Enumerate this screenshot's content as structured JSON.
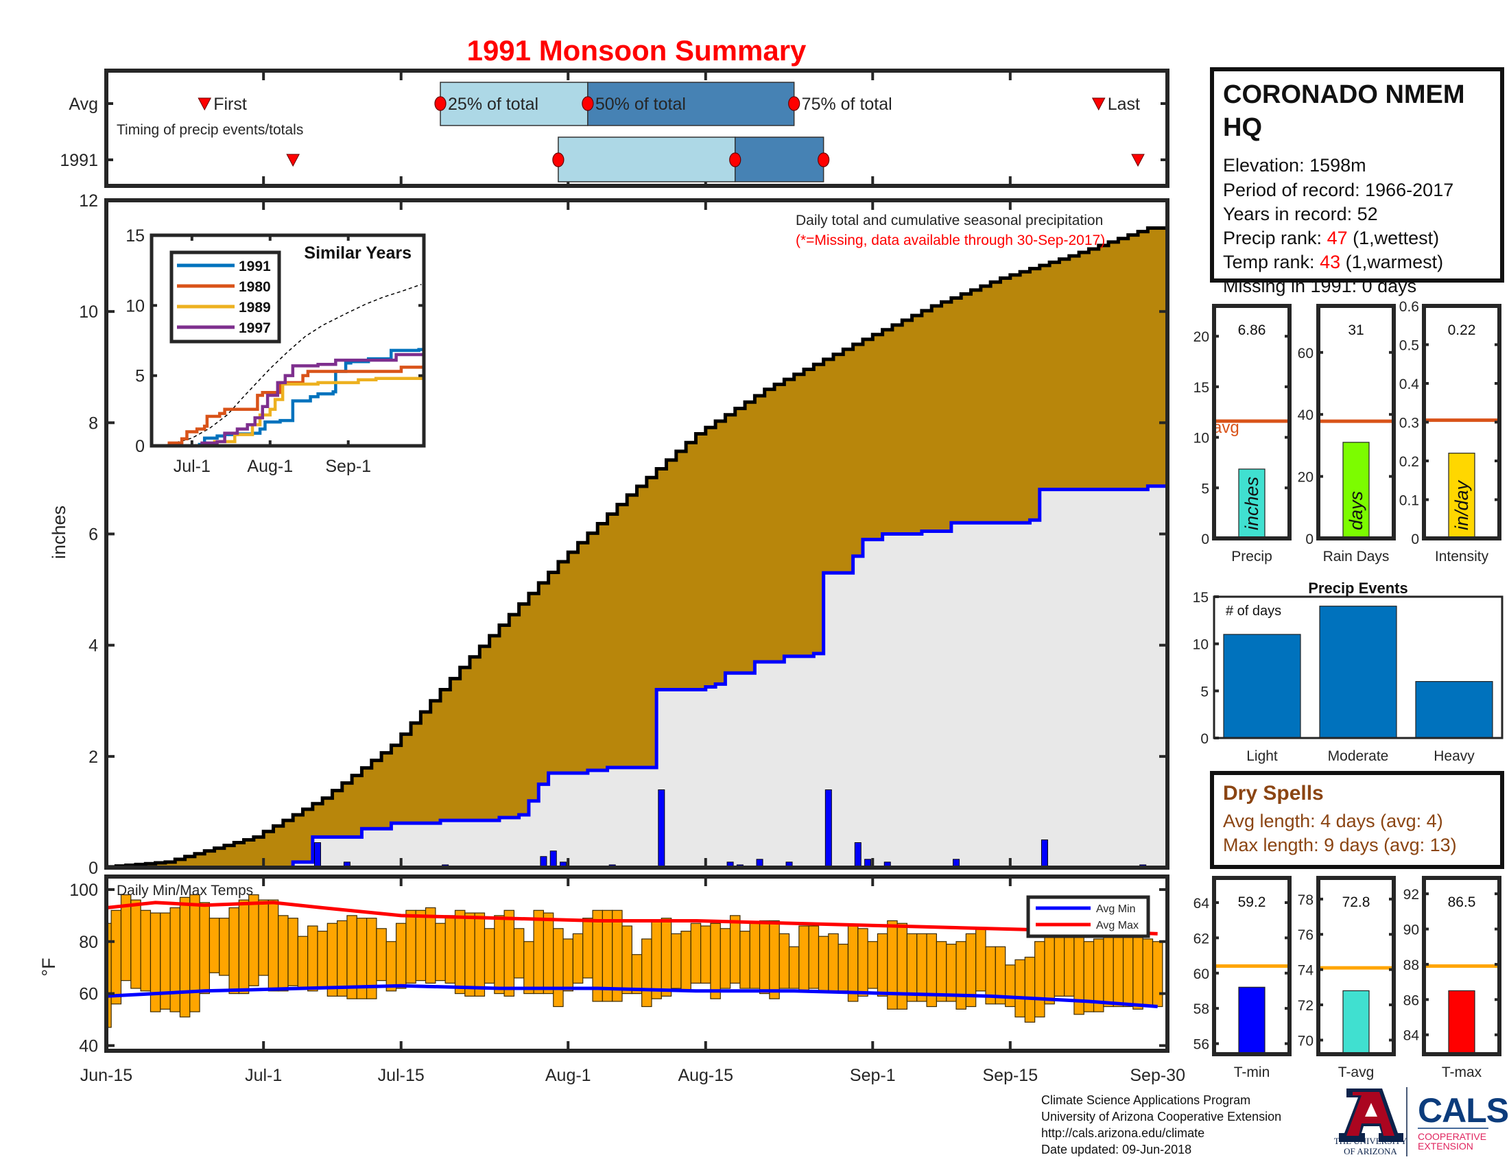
{
  "title": "1991 Monsoon Summary",
  "colors": {
    "title": "#ff0000",
    "cum_avg_fill": "#b8860b",
    "cum_year_fill": "#e8e8e8",
    "year_line": "#0000ff",
    "temp_bar": "#ffa500",
    "avg_max": "#ff0000",
    "avg_min": "#0000ff",
    "avg_line_orange": "#d95319",
    "avg_line_gold": "#ffa500",
    "dry_spells": "#8b4513"
  },
  "station": {
    "name_line1": "CORONADO NMEM",
    "name_line2": "HQ",
    "elevation": "Elevation: 1598m",
    "period": "Period of record: 1966-2017",
    "years": "Years in record: 52",
    "precip_rank_label": "Precip rank: ",
    "precip_rank_value": "47",
    "precip_rank_note": " (1,wettest)",
    "temp_rank_label": "Temp rank: ",
    "temp_rank_value": "43",
    "temp_rank_note": " (1,warmest)",
    "missing": "Missing in 1991: 0 days"
  },
  "dry_spells": {
    "title": "Dry Spells",
    "avg_length": "Avg length: 4 days (avg: 4)",
    "max_length": "Max length: 9 days (avg: 13)"
  },
  "footer": {
    "line1": "Climate Science Applications Program",
    "line2": "University of Arizona Cooperative Extension",
    "line3": "http://cals.arizona.edu/climate",
    "line4": " Date updated: 09-Jun-2018"
  },
  "logo": {
    "ua_line1": "THE UNIVERSITY",
    "ua_line2": "OF ARIZONA",
    "cals": "CALS",
    "cals_sub1": "COOPERATIVE",
    "cals_sub2": "EXTENSION"
  },
  "x_axis": {
    "ticks": [
      "Jun-15",
      "Jul-1",
      "Jul-15",
      "Aug-1",
      "Aug-15",
      "Sep-1",
      "Sep-15",
      "Sep-30"
    ]
  },
  "chart_data": [
    {
      "id": "timing",
      "type": "timeline",
      "annotation": "Timing of precip events/totals",
      "rows": [
        {
          "label": "Avg",
          "first": "Jun-25",
          "p25": "Jul-19",
          "p50": "Aug-3",
          "p75": "Aug-24",
          "last": "Sep-24",
          "texts": {
            "first": "First",
            "p25": "25% of total",
            "p50": "50% of total",
            "p75": "75% of total",
            "last": "Last"
          }
        },
        {
          "label": "1991",
          "first": "Jul-4",
          "p25": "Jul-31",
          "p50": "Aug-18",
          "p75": "Aug-27",
          "last": "Sep-28"
        }
      ]
    },
    {
      "id": "precip",
      "type": "area",
      "ylabel": "inches",
      "ylim": [
        0,
        12
      ],
      "yticks": [
        "0",
        "2",
        "4",
        "6",
        "8",
        "10",
        "12"
      ],
      "annotation": "Daily total and cumulative seasonal precipitation",
      "note": "(*=Missing, data available through 30-Sep-2017)",
      "cumulative_avg": [
        [
          "Jun-15",
          0
        ],
        [
          "Jun-22",
          0.1
        ],
        [
          "Jul-1",
          0.55
        ],
        [
          "Jul-8",
          1.25
        ],
        [
          "Jul-15",
          2.2
        ],
        [
          "Jul-22",
          3.6
        ],
        [
          "Aug-1",
          5.5
        ],
        [
          "Aug-8",
          6.7
        ],
        [
          "Aug-15",
          7.8
        ],
        [
          "Aug-22",
          8.6
        ],
        [
          "Sep-1",
          9.5
        ],
        [
          "Sep-8",
          10.1
        ],
        [
          "Sep-15",
          10.6
        ],
        [
          "Sep-22",
          11.0
        ],
        [
          "Sep-30",
          11.5
        ]
      ],
      "cumulative_1991": [
        [
          "Jun-15",
          0
        ],
        [
          "Jul-4",
          0.1
        ],
        [
          "Jul-6",
          0.55
        ],
        [
          "Jul-11",
          0.7
        ],
        [
          "Jul-14",
          0.8
        ],
        [
          "Jul-19",
          0.85
        ],
        [
          "Jul-25",
          0.9
        ],
        [
          "Jul-27",
          0.95
        ],
        [
          "Jul-28",
          1.2
        ],
        [
          "Jul-29",
          1.5
        ],
        [
          "Jul-30",
          1.7
        ],
        [
          "Aug-3",
          1.75
        ],
        [
          "Aug-5",
          1.8
        ],
        [
          "Aug-10",
          3.2
        ],
        [
          "Aug-15",
          3.25
        ],
        [
          "Aug-16",
          3.3
        ],
        [
          "Aug-17",
          3.5
        ],
        [
          "Aug-20",
          3.7
        ],
        [
          "Aug-23",
          3.8
        ],
        [
          "Aug-26",
          3.85
        ],
        [
          "Aug-27",
          5.3
        ],
        [
          "Aug-30",
          5.6
        ],
        [
          "Aug-31",
          5.9
        ],
        [
          "Sep-2",
          6.0
        ],
        [
          "Sep-6",
          6.05
        ],
        [
          "Sep-9",
          6.2
        ],
        [
          "Sep-17",
          6.25
        ],
        [
          "Sep-18",
          6.8
        ],
        [
          "Sep-29",
          6.86
        ]
      ],
      "daily_1991": [
        [
          "Jul-6",
          0.45
        ],
        [
          "Jul-9",
          0.1
        ],
        [
          "Jul-19",
          0.05
        ],
        [
          "Jul-29",
          0.2
        ],
        [
          "Jul-30",
          0.3
        ],
        [
          "Jul-31",
          0.1
        ],
        [
          "Aug-5",
          0.05
        ],
        [
          "Aug-10",
          1.4
        ],
        [
          "Aug-17",
          0.1
        ],
        [
          "Aug-18",
          0.05
        ],
        [
          "Aug-20",
          0.15
        ],
        [
          "Aug-23",
          0.1
        ],
        [
          "Aug-27",
          1.4
        ],
        [
          "Aug-30",
          0.45
        ],
        [
          "Aug-31",
          0.15
        ],
        [
          "Sep-2",
          0.1
        ],
        [
          "Sep-9",
          0.15
        ],
        [
          "Sep-18",
          0.5
        ],
        [
          "Sep-28",
          0.05
        ]
      ]
    },
    {
      "id": "similar_years",
      "type": "line",
      "title": "Similar Years",
      "ylim": [
        0,
        15
      ],
      "yticks": [
        "0",
        "5",
        "10",
        "15"
      ],
      "xticks": [
        "Jul-1",
        "Aug-1",
        "Sep-1"
      ],
      "legend": "top-left",
      "series": [
        {
          "name": "1991",
          "color": "#0072bd",
          "points": [
            [
              "Jun-15",
              0
            ],
            [
              "Jul-4",
              0.1
            ],
            [
              "Jul-6",
              0.55
            ],
            [
              "Jul-11",
              0.7
            ],
            [
              "Jul-14",
              0.8
            ],
            [
              "Jul-19",
              0.85
            ],
            [
              "Jul-25",
              0.9
            ],
            [
              "Jul-28",
              1.2
            ],
            [
              "Jul-30",
              1.7
            ],
            [
              "Aug-5",
              1.8
            ],
            [
              "Aug-10",
              3.2
            ],
            [
              "Aug-17",
              3.5
            ],
            [
              "Aug-20",
              3.7
            ],
            [
              "Aug-26",
              3.85
            ],
            [
              "Aug-27",
              5.3
            ],
            [
              "Aug-31",
              5.9
            ],
            [
              "Sep-2",
              6.0
            ],
            [
              "Sep-9",
              6.2
            ],
            [
              "Sep-18",
              6.8
            ],
            [
              "Sep-29",
              6.86
            ]
          ]
        },
        {
          "name": "1980",
          "color": "#d95319",
          "points": [
            [
              "Jun-15",
              0
            ],
            [
              "Jun-22",
              0.2
            ],
            [
              "Jun-27",
              0.5
            ],
            [
              "Jun-29",
              1.0
            ],
            [
              "Jul-3",
              1.2
            ],
            [
              "Jul-6",
              1.4
            ],
            [
              "Jul-7",
              2.1
            ],
            [
              "Jul-12",
              2.3
            ],
            [
              "Jul-14",
              2.6
            ],
            [
              "Jul-27",
              3.6
            ],
            [
              "Jul-29",
              3.8
            ],
            [
              "Aug-5",
              4.5
            ],
            [
              "Aug-14",
              5.0
            ],
            [
              "Aug-16",
              5.3
            ],
            [
              "Sep-22",
              5.6
            ]
          ]
        },
        {
          "name": "1989",
          "color": "#edb120",
          "points": [
            [
              "Jun-15",
              0
            ],
            [
              "Jul-8",
              0.0
            ],
            [
              "Jul-10",
              0.3
            ],
            [
              "Jul-18",
              0.8
            ],
            [
              "Jul-25",
              1.5
            ],
            [
              "Jul-28",
              2.2
            ],
            [
              "Aug-1",
              2.6
            ],
            [
              "Aug-3",
              3.3
            ],
            [
              "Aug-6",
              4.4
            ],
            [
              "Aug-20",
              4.5
            ],
            [
              "Sep-5",
              4.7
            ],
            [
              "Sep-12",
              4.8
            ]
          ]
        },
        {
          "name": "1997",
          "color": "#7e2f8e",
          "points": [
            [
              "Jun-15",
              0
            ],
            [
              "Jul-4",
              0.0
            ],
            [
              "Jul-5",
              0.2
            ],
            [
              "Jul-11",
              0.3
            ],
            [
              "Jul-14",
              0.9
            ],
            [
              "Jul-19",
              1.2
            ],
            [
              "Jul-23",
              1.5
            ],
            [
              "Jul-26",
              2.0
            ],
            [
              "Jul-29",
              2.8
            ],
            [
              "Jul-31",
              3.6
            ],
            [
              "Aug-4",
              4.5
            ],
            [
              "Aug-7",
              5.0
            ],
            [
              "Aug-10",
              5.7
            ],
            [
              "Aug-20",
              5.8
            ],
            [
              "Aug-27",
              6.1
            ],
            [
              "Sep-20",
              6.5
            ]
          ]
        }
      ]
    },
    {
      "id": "temps",
      "type": "bar",
      "annotation": "Daily Min/Max Temps",
      "ylabel": "°F",
      "ylim": [
        38,
        105
      ],
      "yticks": [
        "40",
        "60",
        "80",
        "100"
      ],
      "dates_from": "Jun-15",
      "dates_to": "Sep-30",
      "daily_max": [
        87,
        92,
        98,
        96,
        92,
        91,
        91,
        93,
        97,
        98,
        95,
        89,
        89,
        93,
        96,
        98,
        96,
        96,
        90,
        89,
        82,
        86,
        84,
        87,
        88,
        90,
        89,
        89,
        85,
        80,
        87,
        92,
        92,
        93,
        87,
        90,
        92,
        91,
        91,
        85,
        90,
        92,
        85,
        80,
        92,
        91,
        85,
        81,
        83,
        89,
        92,
        92,
        92,
        86,
        75,
        81,
        88,
        89,
        83,
        84,
        87,
        86,
        87,
        85,
        90,
        84,
        87,
        88,
        88,
        83,
        78,
        86,
        86,
        82,
        83,
        79,
        86,
        85,
        80,
        83,
        88,
        87,
        83,
        83,
        83,
        80,
        79,
        80,
        83,
        85,
        78,
        78,
        71,
        73,
        74,
        80,
        83,
        83,
        83,
        82,
        80,
        81,
        82,
        82,
        82,
        82,
        81,
        80
      ],
      "daily_min": [
        47,
        56,
        65,
        62,
        61,
        53,
        54,
        53,
        51,
        53,
        60,
        68,
        67,
        60,
        60,
        63,
        67,
        61,
        61,
        63,
        62,
        61,
        62,
        59,
        59,
        58,
        58,
        58,
        65,
        61,
        62,
        64,
        65,
        64,
        65,
        64,
        60,
        59,
        59,
        64,
        60,
        59,
        66,
        60,
        60,
        60,
        55,
        61,
        64,
        66,
        57,
        57,
        57,
        60,
        60,
        55,
        58,
        59,
        62,
        61,
        64,
        64,
        58,
        62,
        64,
        62,
        62,
        60,
        58,
        62,
        62,
        61,
        62,
        61,
        61,
        61,
        57,
        59,
        62,
        59,
        54,
        54,
        57,
        57,
        55,
        57,
        57,
        54,
        55,
        61,
        56,
        56,
        55,
        51,
        49,
        51,
        56,
        59,
        59,
        52,
        53,
        53,
        55,
        55,
        55,
        54,
        55,
        55
      ],
      "series": [
        {
          "name": "Avg Min",
          "color": "#0000ff",
          "points": [
            [
              "Jun-15",
              59
            ],
            [
              "Jun-25",
              61
            ],
            [
              "Jul-5",
              62
            ],
            [
              "Jul-15",
              63
            ],
            [
              "Jul-25",
              62
            ],
            [
              "Aug-4",
              62
            ],
            [
              "Aug-14",
              61
            ],
            [
              "Aug-24",
              61
            ],
            [
              "Sep-3",
              60
            ],
            [
              "Sep-13",
              59
            ],
            [
              "Sep-23",
              57
            ],
            [
              "Sep-30",
              55
            ]
          ]
        },
        {
          "name": "Avg Max",
          "color": "#ff0000",
          "points": [
            [
              "Jun-15",
              93
            ],
            [
              "Jun-20",
              95
            ],
            [
              "Jun-25",
              94
            ],
            [
              "Jul-2",
              95
            ],
            [
              "Jul-7",
              93
            ],
            [
              "Jul-15",
              90
            ],
            [
              "Jul-25",
              89
            ],
            [
              "Aug-4",
              88
            ],
            [
              "Aug-14",
              88
            ],
            [
              "Aug-24",
              87
            ],
            [
              "Sep-3",
              86
            ],
            [
              "Sep-13",
              85
            ],
            [
              "Sep-23",
              84
            ],
            [
              "Sep-30",
              83
            ]
          ]
        }
      ],
      "legend": "top-right"
    },
    {
      "id": "season_totals",
      "type": "bar",
      "panels": [
        {
          "xlabel": "Precip",
          "value": 6.86,
          "value_label": "6.86",
          "avg": 11.6,
          "avg_label": "avg",
          "unit": "inches",
          "color": "#40e0d0",
          "ylim": [
            0,
            23
          ],
          "yticks": [
            "0",
            "5",
            "10",
            "15",
            "20"
          ]
        },
        {
          "xlabel": "Rain Days",
          "value": 31,
          "value_label": "31",
          "avg": 37.8,
          "unit": "days",
          "color": "#7cfc00",
          "ylim": [
            0,
            75
          ],
          "yticks": [
            "0",
            "20",
            "40",
            "60"
          ]
        },
        {
          "xlabel": "Intensity",
          "value": 0.22,
          "value_label": "0.22",
          "avg": 0.305,
          "unit": "in/day",
          "color": "#ffd700",
          "ylim": [
            0,
            0.6
          ],
          "yticks": [
            "0",
            "0.1",
            "0.2",
            "0.3",
            "0.4",
            "0.5",
            "0.6"
          ]
        }
      ]
    },
    {
      "id": "precip_events",
      "type": "bar",
      "title": "Precip Events",
      "annotation": "# of days",
      "categories": [
        "Light",
        "Moderate",
        "Heavy"
      ],
      "values": [
        11,
        14,
        6
      ],
      "color": "#0072bd",
      "ylim": [
        0,
        15
      ],
      "yticks": [
        "0",
        "5",
        "10",
        "15"
      ]
    },
    {
      "id": "season_temps",
      "type": "bar",
      "panels": [
        {
          "xlabel": "T-min",
          "value": 59.2,
          "value_label": "59.2",
          "avg": 60.4,
          "color": "#0000ff",
          "ylim": [
            55.4,
            65.4
          ],
          "yticks": [
            "56",
            "58",
            "60",
            "62",
            "64"
          ]
        },
        {
          "xlabel": "T-avg",
          "value": 72.8,
          "value_label": "72.8",
          "avg": 74.1,
          "color": "#40e0d0",
          "ylim": [
            69.2,
            79.2
          ],
          "yticks": [
            "70",
            "72",
            "74",
            "76",
            "78"
          ]
        },
        {
          "xlabel": "T-max",
          "value": 86.5,
          "value_label": "86.5",
          "avg": 87.9,
          "color": "#ff0000",
          "ylim": [
            82.9,
            92.9
          ],
          "yticks": [
            "84",
            "86",
            "88",
            "90",
            "92"
          ]
        }
      ]
    }
  ]
}
